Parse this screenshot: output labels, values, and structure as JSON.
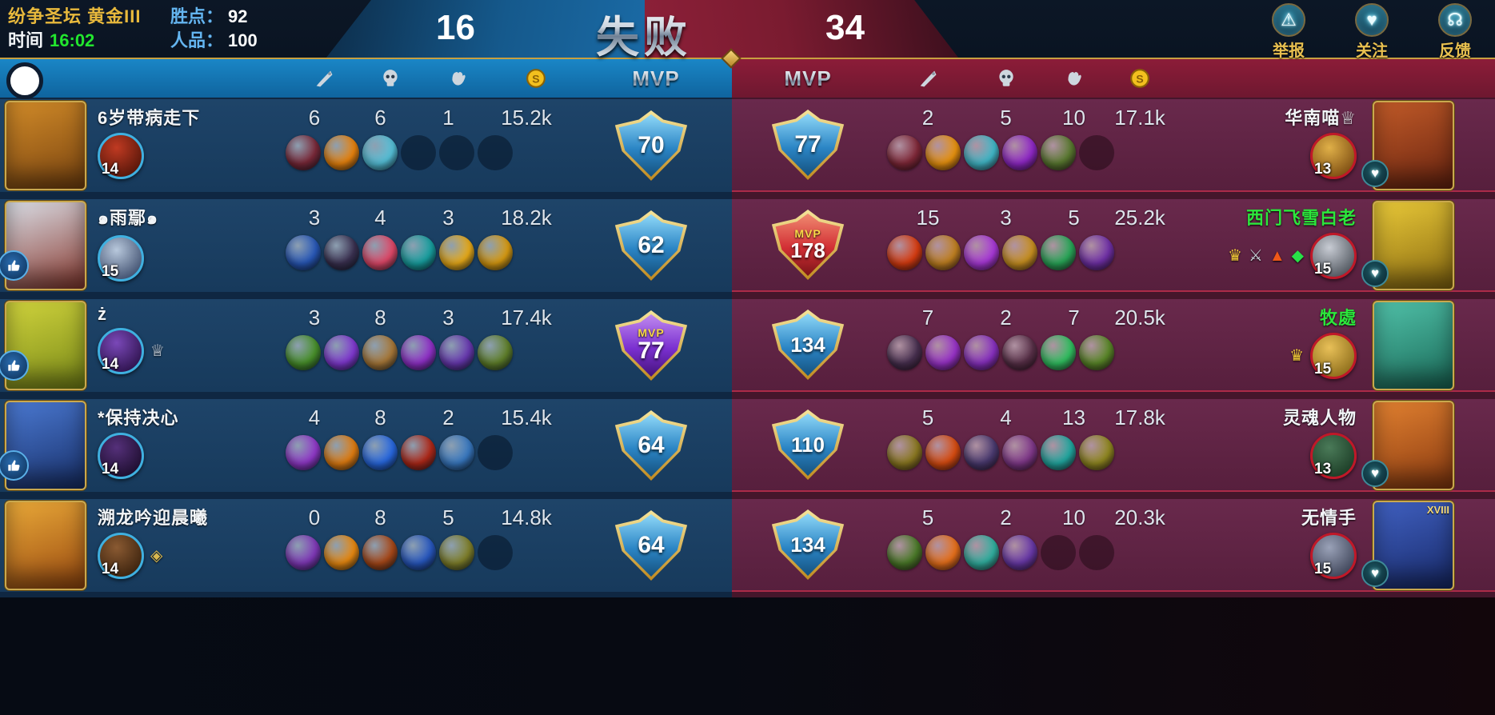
{
  "top": {
    "rank": "纷争圣坛 黄金III",
    "time_label": "时间",
    "time_value": "16:02",
    "win_points_label": "胜点：",
    "win_points_value": "92",
    "karma_label": "人品：",
    "karma_value": "100",
    "left_score": "16",
    "result_title": "失败",
    "right_score": "34",
    "actions": [
      {
        "label": "举报",
        "icon": "warning-icon",
        "glyph": "⚠"
      },
      {
        "label": "关注",
        "icon": "heart-icon",
        "glyph": "♥"
      },
      {
        "label": "反馈",
        "icon": "headset-icon",
        "glyph": "☊"
      }
    ]
  },
  "subheader": {
    "mvp_left": "MVP",
    "mvp_right": "MVP"
  },
  "colors": {
    "accent_gold": "#e8b93c",
    "label_blue": "#64b5f0",
    "time_green": "#22e62e",
    "green_name": "#2ce63c",
    "white_name": "#f2f5f8",
    "left_panel": "#0f2742",
    "right_panel": "#45162b"
  },
  "teams": {
    "left": {
      "rows": [
        {
          "name": "6岁带病走下",
          "name_color": "#f2f5f8",
          "level": "14",
          "kills": "6",
          "deaths": "6",
          "assists": "1",
          "gold": "15.2k",
          "badge": {
            "type": "blue",
            "value": "70"
          },
          "items": [
            "#7a2838",
            "#e8820c",
            "#55c0d8"
          ],
          "empty": 3,
          "liked": false,
          "honors": [],
          "card": [
            "#d08a28",
            "#7a4410"
          ],
          "avatar": [
            "#c03a22",
            "#501408"
          ]
        },
        {
          "name": "๑雨鄢๑",
          "name_color": "#f2f5f8",
          "level": "15",
          "kills": "3",
          "deaths": "4",
          "assists": "3",
          "gold": "18.2k",
          "badge": {
            "type": "blue",
            "value": "62"
          },
          "items": [
            "#2858b8",
            "#3a3050",
            "#e04868",
            "#18a0a0",
            "#e8aa18",
            "#d89a10"
          ],
          "empty": 0,
          "liked": true,
          "honors": [],
          "card": [
            "#d8dce4",
            "#8a3a30"
          ],
          "avatar": [
            "#b8c8dc",
            "#3a4a6a"
          ]
        },
        {
          "name": "ż",
          "name_color": "#f2f5f8",
          "level": "14",
          "kills": "3",
          "deaths": "8",
          "assists": "3",
          "gold": "17.4k",
          "badge": {
            "type": "purple",
            "label": "MVP",
            "value": "77"
          },
          "items": [
            "#48902a",
            "#8038d0",
            "#a87838",
            "#9030c8",
            "#6838b0",
            "#60802a"
          ],
          "empty": 0,
          "liked": true,
          "honors": [
            {
              "glyph": "♕",
              "color": "#e6ecf4",
              "name": "crown-icon"
            }
          ],
          "card": [
            "#cfd23c",
            "#7a8a18"
          ],
          "avatar": [
            "#7a48b8",
            "#2a1048"
          ]
        },
        {
          "name": "*保持决心",
          "name_color": "#f2f5f8",
          "level": "14",
          "kills": "4",
          "deaths": "8",
          "assists": "2",
          "gold": "15.4k",
          "badge": {
            "type": "blue",
            "value": "64"
          },
          "items": [
            "#9038c8",
            "#e07c10",
            "#2868e0",
            "#b02818",
            "#3878c0"
          ],
          "empty": 1,
          "liked": true,
          "honors": [],
          "card": [
            "#4a78d0",
            "#18306a"
          ],
          "avatar": [
            "#55307a",
            "#1a0c2a"
          ]
        },
        {
          "name": "溯龙吟迎晨曦",
          "name_color": "#f2f5f8",
          "level": "14",
          "kills": "0",
          "deaths": "8",
          "assists": "5",
          "gold": "14.8k",
          "badge": {
            "type": "blue",
            "value": "64"
          },
          "items": [
            "#8038b8",
            "#e8880f",
            "#a84818",
            "#2858c0",
            "#80802a"
          ],
          "empty": 1,
          "liked": false,
          "honors": [
            {
              "glyph": "◈",
              "color": "#d8b850",
              "name": "medal-icon"
            }
          ],
          "card": [
            "#e8a838",
            "#9a4a10"
          ],
          "avatar": [
            "#8a5a32",
            "#38200c"
          ]
        }
      ]
    },
    "right": {
      "rows": [
        {
          "name": "华南喵♕",
          "name_color": "#f2f5f8",
          "level": "13",
          "kills": "2",
          "deaths": "5",
          "assists": "10",
          "gold": "17.1k",
          "badge": {
            "type": "blue",
            "value": "77"
          },
          "items": [
            "#802838",
            "#e8920e",
            "#40b8c8",
            "#9028c8",
            "#5a7a30"
          ],
          "empty": 1,
          "liked": true,
          "honors": [],
          "card": [
            "#c05a28",
            "#6a2410"
          ],
          "avatar": [
            "#e0b048",
            "#7a4a10"
          ]
        },
        {
          "name": "西门飞雪白老",
          "name_color": "#2ce63c",
          "level": "15",
          "kills": "15",
          "deaths": "3",
          "assists": "5",
          "gold": "25.2k",
          "badge": {
            "type": "red",
            "label": "MVP",
            "value": "178"
          },
          "items": [
            "#d83c10",
            "#c08020",
            "#a838d8",
            "#c89020",
            "#28a858",
            "#7030a8"
          ],
          "empty": 0,
          "liked": true,
          "honors": [
            {
              "glyph": "♛",
              "color": "#f0c838",
              "name": "crown-icon"
            },
            {
              "glyph": "⚔",
              "color": "#c8d0d8",
              "name": "weapons-icon"
            },
            {
              "glyph": "▲",
              "color": "#f05818",
              "name": "flame-icon"
            },
            {
              "glyph": "◆",
              "color": "#28e048",
              "name": "gem-icon"
            }
          ],
          "card": [
            "#e8c838",
            "#8a6a10"
          ],
          "avatar": [
            "#c8ccd4",
            "#4a5058"
          ]
        },
        {
          "name": "牧處",
          "name_color": "#2ce63c",
          "level": "15",
          "kills": "7",
          "deaths": "2",
          "assists": "7",
          "gold": "20.5k",
          "badge": {
            "type": "blue",
            "value": "134"
          },
          "items": [
            "#483050",
            "#9832c8",
            "#8830c0",
            "#583048",
            "#30c060",
            "#5a8828"
          ],
          "empty": 0,
          "liked": false,
          "honors": [
            {
              "glyph": "♛",
              "color": "#f0c838",
              "name": "crown-icon"
            }
          ],
          "card": [
            "#50c0a8",
            "#1a6a58"
          ],
          "avatar": [
            "#e8c058",
            "#8a6a18"
          ]
        },
        {
          "name": "灵魂人物",
          "name_color": "#f2f5f8",
          "level": "13",
          "kills": "5",
          "deaths": "4",
          "assists": "13",
          "gold": "17.8k",
          "badge": {
            "type": "blue",
            "value": "110"
          },
          "items": [
            "#8a7820",
            "#d84c10",
            "#4a3a70",
            "#80388a",
            "#20a8a0",
            "#908820"
          ],
          "empty": 0,
          "liked": true,
          "honors": [],
          "card": [
            "#e08030",
            "#8a3a10"
          ],
          "avatar": [
            "#4a7a58",
            "#1a3a24"
          ]
        },
        {
          "name": "无情手",
          "name_color": "#f2f5f8",
          "level": "15",
          "kills": "5",
          "deaths": "2",
          "assists": "10",
          "gold": "20.3k",
          "badge": {
            "type": "blue",
            "value": "134"
          },
          "items": [
            "#4a7a28",
            "#e8701a",
            "#30b0a0",
            "#6838a8"
          ],
          "empty": 2,
          "liked": true,
          "honors": [],
          "card_tag": "XVIII",
          "card": [
            "#4060c0",
            "#182a6a"
          ],
          "avatar": [
            "#9aa2b8",
            "#3a4054"
          ]
        }
      ]
    }
  }
}
